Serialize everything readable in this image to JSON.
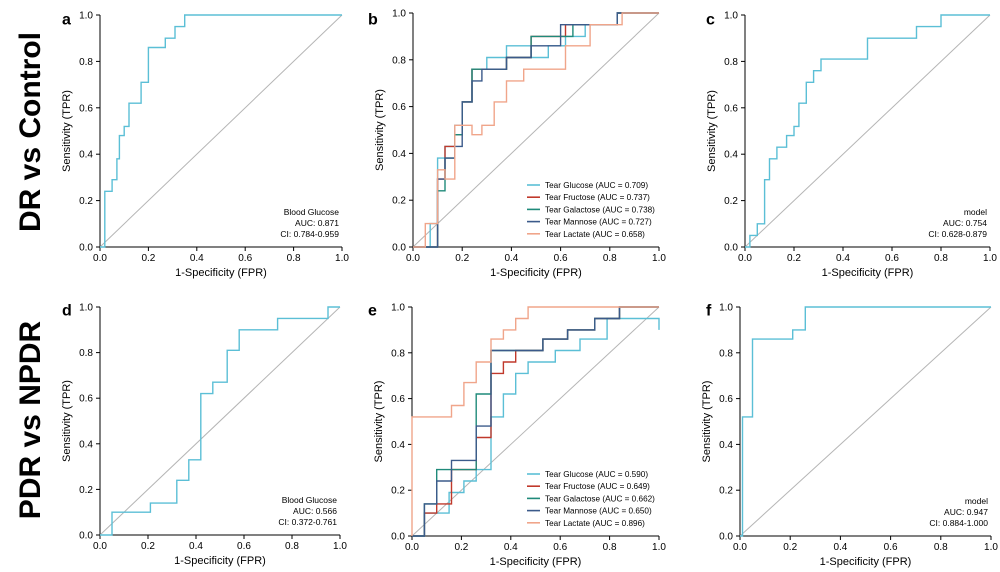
{
  "figure": {
    "row_labels": [
      "DR vs Control",
      "PDR vs NPDR"
    ]
  },
  "colors": {
    "glucose": "#5bbfd6",
    "fructose": "#c0392b",
    "galactose": "#1f8a7a",
    "mannose": "#3b5a8a",
    "lactate": "#f0a58a",
    "diagonal": "#b5b5b5",
    "axis": "#000000"
  },
  "chart_data": [
    {
      "panel": "a",
      "type": "line",
      "xlabel": "1-Specificity (FPR)",
      "ylabel": "Sensitivity (TPR)",
      "xlim": [
        0,
        1
      ],
      "ylim": [
        0,
        1
      ],
      "xticks": [
        "0.0",
        "0.2",
        "0.4",
        "0.6",
        "0.8",
        "1.0"
      ],
      "yticks": [
        "0.0",
        "0.2",
        "0.4",
        "0.6",
        "0.8",
        "1.0"
      ],
      "diagonal": true,
      "annotation": [
        "Blood Glucose",
        "AUC: 0.871",
        "CI: 0.784-0.959"
      ],
      "series": [
        {
          "color_key": "glucose",
          "x": [
            0,
            0.02,
            0.02,
            0.05,
            0.05,
            0.07,
            0.07,
            0.08,
            0.08,
            0.1,
            0.1,
            0.12,
            0.12,
            0.17,
            0.17,
            0.2,
            0.2,
            0.27,
            0.27,
            0.31,
            0.31,
            0.35,
            0.35,
            0.5,
            1
          ],
          "y": [
            0,
            0,
            0.24,
            0.24,
            0.29,
            0.29,
            0.38,
            0.38,
            0.48,
            0.48,
            0.52,
            0.52,
            0.62,
            0.62,
            0.71,
            0.71,
            0.86,
            0.86,
            0.9,
            0.9,
            0.95,
            0.95,
            1.0,
            1.0,
            1.0
          ]
        }
      ]
    },
    {
      "panel": "b",
      "type": "line",
      "xlabel": "1-Specificity (FPR)",
      "ylabel": "Sensitivity (TPR)",
      "xlim": [
        0,
        1
      ],
      "ylim": [
        0,
        1
      ],
      "xticks": [
        "0.0",
        "0.2",
        "0.4",
        "0.6",
        "0.8",
        "1.0"
      ],
      "yticks": [
        "0.0",
        "0.2",
        "0.4",
        "0.6",
        "0.8",
        "1.0"
      ],
      "diagonal": true,
      "legend": "lower-right",
      "series": [
        {
          "name": "Tear Glucose (AUC = 0.709)",
          "color_key": "glucose",
          "x": [
            0,
            0.07,
            0.07,
            0.1,
            0.1,
            0.13,
            0.13,
            0.17,
            0.17,
            0.2,
            0.2,
            0.24,
            0.24,
            0.3,
            0.3,
            0.38,
            0.38,
            0.48,
            0.48,
            0.55,
            0.55,
            0.62,
            0.62,
            0.7,
            0.7,
            0.83,
            0.83,
            1
          ],
          "y": [
            0,
            0,
            0.1,
            0.1,
            0.38,
            0.38,
            0.43,
            0.43,
            0.52,
            0.52,
            0.62,
            0.62,
            0.76,
            0.76,
            0.81,
            0.81,
            0.86,
            0.86,
            0.81,
            0.81,
            0.86,
            0.86,
            0.9,
            0.9,
            0.95,
            0.95,
            1.0,
            1.0
          ]
        },
        {
          "name": "Tear Fructose (AUC = 0.737)",
          "color_key": "fructose",
          "x": [
            0,
            0.1,
            0.1,
            0.13,
            0.13,
            0.17,
            0.17,
            0.2,
            0.2,
            0.24,
            0.24,
            0.38,
            0.38,
            0.48,
            0.48,
            0.55,
            0.55,
            0.62,
            0.62,
            0.72,
            0.72,
            0.83,
            0.83,
            1
          ],
          "y": [
            0,
            0,
            0.29,
            0.29,
            0.43,
            0.43,
            0.48,
            0.48,
            0.62,
            0.62,
            0.76,
            0.76,
            0.81,
            0.81,
            0.9,
            0.9,
            0.9,
            0.9,
            0.95,
            0.95,
            0.95,
            0.95,
            1.0,
            1.0
          ]
        },
        {
          "name": "Tear Galactose (AUC = 0.738)",
          "color_key": "galactose",
          "x": [
            0,
            0.1,
            0.1,
            0.13,
            0.13,
            0.17,
            0.17,
            0.2,
            0.2,
            0.24,
            0.24,
            0.38,
            0.38,
            0.48,
            0.48,
            0.55,
            0.55,
            0.65,
            0.65,
            0.83,
            0.83,
            1
          ],
          "y": [
            0,
            0,
            0.24,
            0.24,
            0.38,
            0.38,
            0.48,
            0.48,
            0.62,
            0.62,
            0.76,
            0.76,
            0.81,
            0.81,
            0.9,
            0.9,
            0.9,
            0.9,
            0.95,
            0.95,
            1.0,
            1.0
          ]
        },
        {
          "name": "Tear Mannose (AUC = 0.727)",
          "color_key": "mannose",
          "x": [
            0,
            0.1,
            0.1,
            0.13,
            0.13,
            0.17,
            0.17,
            0.2,
            0.2,
            0.24,
            0.24,
            0.28,
            0.28,
            0.38,
            0.38,
            0.48,
            0.48,
            0.6,
            0.6,
            0.83,
            0.83,
            1
          ],
          "y": [
            0,
            0,
            0.29,
            0.29,
            0.38,
            0.38,
            0.43,
            0.43,
            0.62,
            0.62,
            0.71,
            0.71,
            0.76,
            0.76,
            0.81,
            0.81,
            0.86,
            0.86,
            0.95,
            0.95,
            1.0,
            1.0
          ]
        },
        {
          "name": "Tear Lactate (AUC = 0.658)",
          "color_key": "lactate",
          "x": [
            0,
            0.05,
            0.05,
            0.1,
            0.1,
            0.13,
            0.13,
            0.17,
            0.17,
            0.24,
            0.24,
            0.28,
            0.28,
            0.33,
            0.33,
            0.38,
            0.38,
            0.45,
            0.45,
            0.55,
            0.55,
            0.62,
            0.62,
            0.72,
            0.72,
            0.85,
            0.85,
            1
          ],
          "y": [
            0,
            0,
            0.1,
            0.1,
            0.33,
            0.33,
            0.29,
            0.29,
            0.52,
            0.52,
            0.48,
            0.48,
            0.52,
            0.52,
            0.62,
            0.62,
            0.71,
            0.71,
            0.76,
            0.76,
            0.76,
            0.76,
            0.86,
            0.86,
            0.95,
            0.95,
            1.0,
            1.0
          ]
        }
      ]
    },
    {
      "panel": "c",
      "type": "line",
      "xlabel": "1-Specificity (FPR)",
      "ylabel": "Sensitivity (TPR)",
      "xlim": [
        0,
        1
      ],
      "ylim": [
        0,
        1
      ],
      "xticks": [
        "0.0",
        "0.2",
        "0.4",
        "0.6",
        "0.8",
        "1.0"
      ],
      "yticks": [
        "0.0",
        "0.2",
        "0.4",
        "0.6",
        "0.8",
        "1.0"
      ],
      "diagonal": true,
      "annotation": [
        "model",
        "AUC: 0.754",
        "CI: 0.628-0.879"
      ],
      "series": [
        {
          "color_key": "glucose",
          "x": [
            0,
            0.02,
            0.02,
            0.05,
            0.05,
            0.08,
            0.08,
            0.1,
            0.1,
            0.13,
            0.13,
            0.17,
            0.17,
            0.2,
            0.2,
            0.22,
            0.22,
            0.25,
            0.25,
            0.28,
            0.28,
            0.31,
            0.31,
            0.5,
            0.5,
            0.7,
            0.7,
            0.8,
            0.8,
            1
          ],
          "y": [
            0,
            0,
            0.05,
            0.05,
            0.1,
            0.1,
            0.29,
            0.29,
            0.38,
            0.38,
            0.43,
            0.43,
            0.48,
            0.48,
            0.52,
            0.52,
            0.62,
            0.62,
            0.71,
            0.71,
            0.76,
            0.76,
            0.81,
            0.81,
            0.9,
            0.9,
            0.95,
            0.95,
            1.0,
            1.0
          ]
        }
      ]
    },
    {
      "panel": "d",
      "type": "line",
      "xlabel": "1-Specificity (FPR)",
      "ylabel": "Sensitivity (TPR)",
      "xlim": [
        0,
        1
      ],
      "ylim": [
        0,
        1
      ],
      "xticks": [
        "0.0",
        "0.2",
        "0.4",
        "0.6",
        "0.8",
        "1.0"
      ],
      "yticks": [
        "0.0",
        "0.2",
        "0.4",
        "0.6",
        "0.8",
        "1.0"
      ],
      "diagonal": true,
      "annotation": [
        "Blood Glucose",
        "AUC: 0.566",
        "CI: 0.372-0.761"
      ],
      "series": [
        {
          "color_key": "glucose",
          "x": [
            0,
            0.05,
            0.05,
            0.21,
            0.21,
            0.32,
            0.32,
            0.37,
            0.37,
            0.42,
            0.42,
            0.47,
            0.47,
            0.53,
            0.53,
            0.58,
            0.58,
            0.74,
            0.74,
            0.95,
            0.95,
            1
          ],
          "y": [
            0,
            0,
            0.1,
            0.1,
            0.14,
            0.14,
            0.24,
            0.24,
            0.33,
            0.33,
            0.62,
            0.62,
            0.67,
            0.67,
            0.81,
            0.81,
            0.9,
            0.9,
            0.95,
            0.95,
            1.0,
            1.0
          ]
        }
      ]
    },
    {
      "panel": "e",
      "type": "line",
      "xlabel": "1-Specificity (FPR)",
      "ylabel": "Sensitivity (TPR)",
      "xlim": [
        0,
        1
      ],
      "ylim": [
        0,
        1
      ],
      "xticks": [
        "0.0",
        "0.2",
        "0.4",
        "0.6",
        "0.8",
        "1.0"
      ],
      "yticks": [
        "0.0",
        "0.2",
        "0.4",
        "0.6",
        "0.8",
        "1.0"
      ],
      "diagonal": true,
      "legend": "lower-right",
      "series": [
        {
          "name": "Tear Glucose (AUC = 0.590)",
          "color_key": "glucose",
          "x": [
            0,
            0.05,
            0.05,
            0.15,
            0.15,
            0.21,
            0.21,
            0.26,
            0.26,
            0.32,
            0.32,
            0.37,
            0.37,
            0.42,
            0.42,
            0.47,
            0.47,
            0.58,
            0.58,
            0.68,
            0.68,
            0.79,
            0.79,
            1.0,
            1.0
          ],
          "y": [
            0,
            0,
            0.1,
            0.1,
            0.19,
            0.19,
            0.24,
            0.24,
            0.29,
            0.29,
            0.52,
            0.52,
            0.62,
            0.62,
            0.71,
            0.71,
            0.76,
            0.76,
            0.81,
            0.81,
            0.86,
            0.86,
            0.95,
            0.95,
            0.9
          ]
        },
        {
          "name": "Tear Fructose (AUC = 0.649)",
          "color_key": "fructose",
          "x": [
            0,
            0.05,
            0.05,
            0.1,
            0.1,
            0.16,
            0.16,
            0.26,
            0.26,
            0.32,
            0.32,
            0.37,
            0.37,
            0.42,
            0.42,
            0.53,
            0.53,
            0.63,
            0.63,
            0.74,
            0.74,
            0.84,
            0.84,
            1
          ],
          "y": [
            0,
            0,
            0.1,
            0.1,
            0.14,
            0.14,
            0.29,
            0.29,
            0.43,
            0.43,
            0.71,
            0.71,
            0.76,
            0.76,
            0.81,
            0.81,
            0.86,
            0.86,
            0.9,
            0.9,
            0.95,
            0.95,
            1.0,
            1.0
          ]
        },
        {
          "name": "Tear Galactose (AUC = 0.662)",
          "color_key": "galactose",
          "x": [
            0,
            0.05,
            0.05,
            0.1,
            0.1,
            0.26,
            0.26,
            0.32,
            0.32,
            0.37,
            0.37,
            0.42,
            0.42,
            0.53,
            0.53,
            0.63,
            0.63,
            0.74,
            0.74,
            0.84,
            0.84,
            1
          ],
          "y": [
            0,
            0,
            0.14,
            0.14,
            0.29,
            0.29,
            0.62,
            0.62,
            0.81,
            0.81,
            0.81,
            0.81,
            0.81,
            0.81,
            0.86,
            0.86,
            0.9,
            0.9,
            0.95,
            0.95,
            1.0,
            1.0
          ]
        },
        {
          "name": "Tear Mannose (AUC = 0.650)",
          "color_key": "mannose",
          "x": [
            0,
            0.05,
            0.05,
            0.1,
            0.1,
            0.16,
            0.16,
            0.26,
            0.26,
            0.32,
            0.32,
            0.37,
            0.37,
            0.42,
            0.42,
            0.53,
            0.53,
            0.63,
            0.63,
            0.74,
            0.74,
            0.84,
            0.84,
            1
          ],
          "y": [
            0,
            0,
            0.14,
            0.14,
            0.24,
            0.24,
            0.33,
            0.33,
            0.48,
            0.48,
            0.81,
            0.81,
            0.81,
            0.81,
            0.81,
            0.81,
            0.86,
            0.86,
            0.9,
            0.9,
            0.95,
            0.95,
            1.0,
            1.0
          ]
        },
        {
          "name": "Tear Lactate (AUC = 0.896)",
          "color_key": "lactate",
          "x": [
            0,
            0,
            0.02,
            0.02,
            0.16,
            0.16,
            0.21,
            0.21,
            0.26,
            0.26,
            0.32,
            0.32,
            0.37,
            0.37,
            0.42,
            0.42,
            0.47,
            0.47,
            1.0
          ],
          "y": [
            0,
            0.52,
            0.52,
            0.52,
            0.52,
            0.57,
            0.57,
            0.67,
            0.67,
            0.76,
            0.76,
            0.86,
            0.86,
            0.9,
            0.9,
            0.95,
            0.95,
            1.0,
            1.0
          ]
        }
      ]
    },
    {
      "panel": "f",
      "type": "line",
      "xlabel": "1-Specificity (FPR)",
      "ylabel": "Sensitivity (TPR)",
      "xlim": [
        0,
        1
      ],
      "ylim": [
        0,
        1
      ],
      "xticks": [
        "0.0",
        "0.2",
        "0.4",
        "0.6",
        "0.8",
        "1.0"
      ],
      "yticks": [
        "0.0",
        "0.2",
        "0.4",
        "0.6",
        "0.8",
        "1.0"
      ],
      "diagonal": true,
      "annotation": [
        "model",
        "AUC: 0.947",
        "CI: 0.884-1.000"
      ],
      "series": [
        {
          "color_key": "glucose",
          "x": [
            0,
            0.01,
            0.01,
            0.05,
            0.05,
            0.21,
            0.21,
            0.26,
            0.26,
            1
          ],
          "y": [
            0,
            0,
            0.52,
            0.52,
            0.86,
            0.86,
            0.9,
            0.9,
            1.0,
            1.0
          ]
        }
      ]
    }
  ]
}
